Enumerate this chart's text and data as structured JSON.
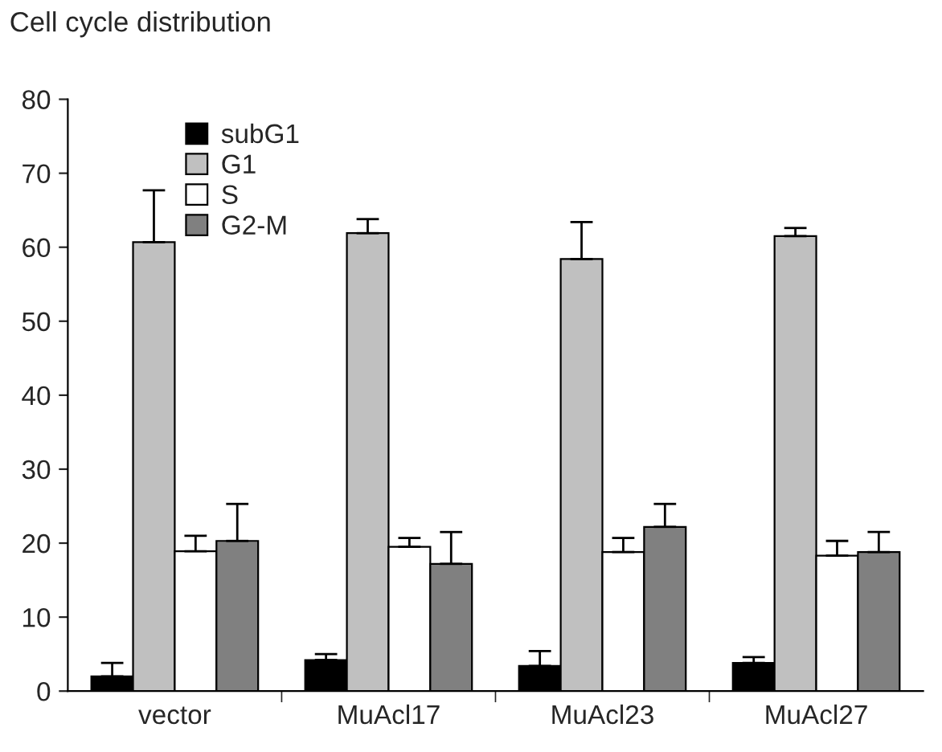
{
  "chart_data": {
    "type": "bar",
    "title": "Cell cycle distribution",
    "categories": [
      "vector",
      "MuAcl17",
      "MuAcl23",
      "MuAcl27"
    ],
    "series": [
      {
        "name": "subG1",
        "color": "#000000",
        "values": [
          2.0,
          4.2,
          3.4,
          3.8
        ],
        "errors": [
          [
            2.0,
            3.8
          ],
          [
            4.2,
            5.0
          ],
          [
            3.4,
            5.4
          ],
          [
            3.8,
            4.6
          ]
        ]
      },
      {
        "name": "G1",
        "color": "#c0c0c0",
        "values": [
          60.7,
          61.9,
          58.4,
          61.5
        ],
        "errors": [
          [
            60.7,
            67.7
          ],
          [
            61.9,
            63.8
          ],
          [
            58.4,
            63.4
          ],
          [
            61.5,
            62.6
          ]
        ]
      },
      {
        "name": "S",
        "color": "#ffffff",
        "values": [
          18.9,
          19.5,
          18.8,
          18.3
        ],
        "errors": [
          [
            18.9,
            21.0
          ],
          [
            19.5,
            20.7
          ],
          [
            18.8,
            20.7
          ],
          [
            18.3,
            20.3
          ]
        ]
      },
      {
        "name": "G2-M",
        "color": "#808080",
        "values": [
          20.3,
          17.2,
          22.2,
          18.8
        ],
        "errors": [
          [
            20.3,
            25.3
          ],
          [
            17.2,
            21.5
          ],
          [
            22.2,
            25.3
          ],
          [
            18.8,
            21.5
          ]
        ]
      }
    ],
    "ylim": [
      0,
      80
    ],
    "yticks": [
      0,
      10,
      20,
      30,
      40,
      50,
      60,
      70,
      80
    ],
    "legend": "top left",
    "grid": false
  }
}
